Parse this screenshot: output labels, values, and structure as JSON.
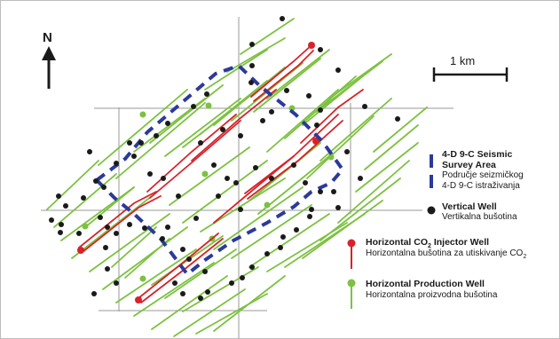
{
  "north_label": "N",
  "scale_label": "1 km",
  "legend": {
    "seismic_area": {
      "title_line1": "4-D 9-C Seismic",
      "title_line2": "Survey Area",
      "sub_line1": "Područje seizmičkog",
      "sub_line2": "4-D 9-C istraživanja",
      "color": "#2b3a9a"
    },
    "vertical_well": {
      "title": "Vertical Well",
      "sub": "Vertikalna bušotina",
      "color": "#1a1a1a"
    },
    "injector_well": {
      "title_prefix": "Horizontal CO",
      "title_sub": "2",
      "title_suffix": " Injector Well",
      "sub_prefix": "Horizontalna bušotina za utiskivanje CO",
      "sub_sub": "2",
      "color": "#d6232a"
    },
    "production_well": {
      "title": "Horizontal Production Well",
      "sub": "Horizontalna proizvodna bušotina",
      "color": "#7dc142"
    }
  },
  "colors": {
    "grid": "#9a9a9a",
    "green": "#7dc142",
    "red": "#d6232a",
    "blue": "#2b3a9a",
    "black": "#1a1a1a"
  }
}
